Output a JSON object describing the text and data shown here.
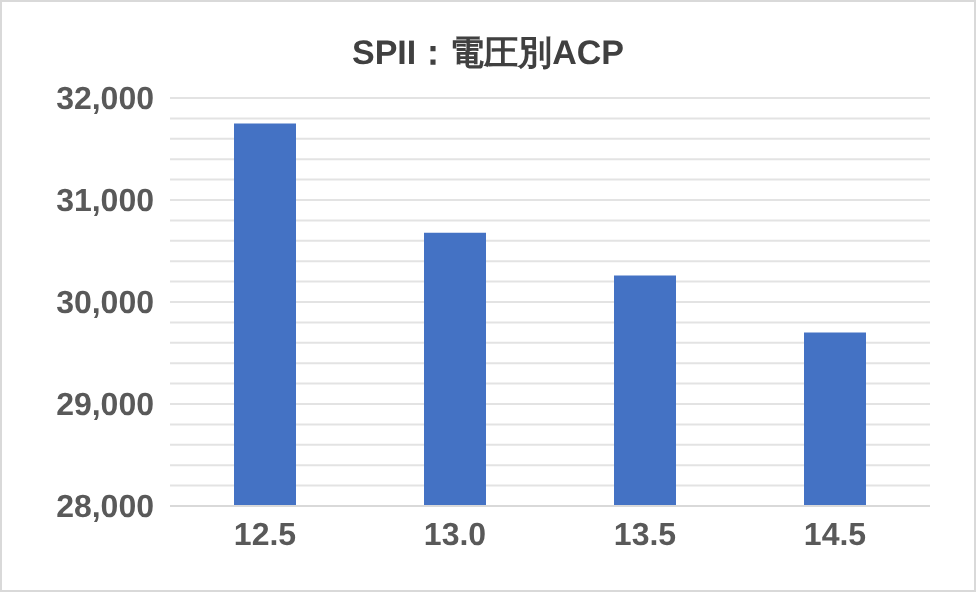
{
  "chart_data": {
    "type": "bar",
    "title": "SPII：電圧別ACP",
    "categories": [
      "12.5",
      "13.0",
      "13.5",
      "14.5"
    ],
    "values": [
      31750,
      30680,
      30260,
      29700
    ],
    "color": "#4472c4",
    "ylim": [
      28000,
      32000
    ],
    "yticks": [
      {
        "value": 28000,
        "label": "28,000"
      },
      {
        "value": 28200,
        "label": null
      },
      {
        "value": 28400,
        "label": null
      },
      {
        "value": 28600,
        "label": null
      },
      {
        "value": 28800,
        "label": null
      },
      {
        "value": 29000,
        "label": "29,000"
      },
      {
        "value": 29200,
        "label": null
      },
      {
        "value": 29400,
        "label": null
      },
      {
        "value": 29600,
        "label": null
      },
      {
        "value": 29800,
        "label": null
      },
      {
        "value": 30000,
        "label": "30,000"
      },
      {
        "value": 30200,
        "label": null
      },
      {
        "value": 30400,
        "label": null
      },
      {
        "value": 30600,
        "label": null
      },
      {
        "value": 30800,
        "label": null
      },
      {
        "value": 31000,
        "label": "31,000"
      },
      {
        "value": 31200,
        "label": null
      },
      {
        "value": 31400,
        "label": null
      },
      {
        "value": 31600,
        "label": null
      },
      {
        "value": 31800,
        "label": null
      },
      {
        "value": 32000,
        "label": "32,000"
      }
    ],
    "grid": "y"
  }
}
